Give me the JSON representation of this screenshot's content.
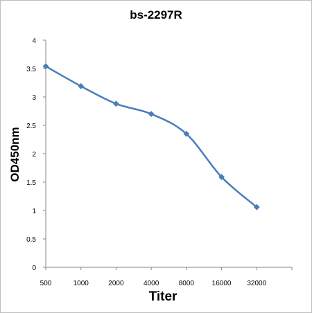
{
  "chart_data": {
    "type": "line",
    "title": "bs-2297R",
    "xlabel": "Titer",
    "ylabel": "OD450nm",
    "categories": [
      "500",
      "1000",
      "2000",
      "4000",
      "8000",
      "16000",
      "32000"
    ],
    "series": [
      {
        "values": [
          3.54,
          3.19,
          2.88,
          2.7,
          2.35,
          1.59,
          1.06
        ]
      }
    ],
    "ylim": [
      0,
      4
    ],
    "yticks": [
      "0",
      "0.5",
      "1",
      "1.5",
      "2",
      "2.5",
      "3",
      "3.5",
      "4"
    ],
    "grid": false,
    "legend": "none",
    "series_color": "#4a7ebb",
    "axis_color": "#868686",
    "smooth": true,
    "marker": "diamond"
  }
}
